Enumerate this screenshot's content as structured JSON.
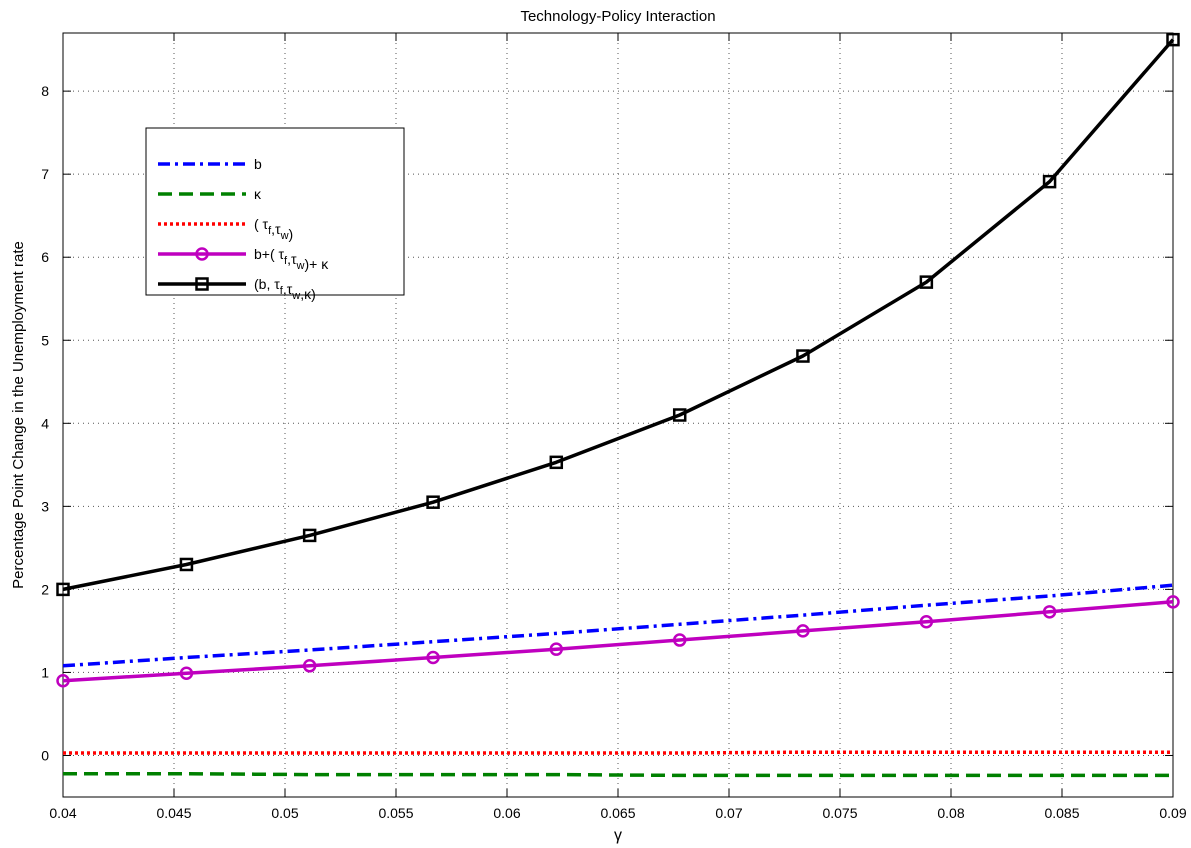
{
  "chart_data": {
    "type": "line",
    "title": "Technology-Policy Interaction",
    "xlabel": "γ",
    "ylabel": "Percentage Point Change in the Unemployment rate",
    "xlim": [
      0.04,
      0.09
    ],
    "ylim": [
      -0.5,
      8.7
    ],
    "xticks": [
      0.04,
      0.045,
      0.05,
      0.055,
      0.06,
      0.065,
      0.07,
      0.075,
      0.08,
      0.085,
      0.09
    ],
    "xtick_labels": [
      "0.04",
      "0.045",
      "0.05",
      "0.055",
      "0.06",
      "0.065",
      "0.07",
      "0.075",
      "0.08",
      "0.085",
      "0.09"
    ],
    "yticks": [
      0,
      1,
      2,
      3,
      4,
      5,
      6,
      7,
      8
    ],
    "ytick_labels": [
      "0",
      "1",
      "2",
      "3",
      "4",
      "5",
      "6",
      "7",
      "8"
    ],
    "grid": true,
    "legend_position": "upper-left",
    "x": [
      0.04,
      0.04556,
      0.05111,
      0.05667,
      0.06222,
      0.06778,
      0.07333,
      0.07889,
      0.08444,
      0.09
    ],
    "series": [
      {
        "name": "b",
        "legend_parts": [
          {
            "t": "b"
          }
        ],
        "color": "#0000ff",
        "dash": "12,5,3,5",
        "marker": "none",
        "values": [
          1.08,
          1.18,
          1.27,
          1.37,
          1.47,
          1.58,
          1.69,
          1.81,
          1.92,
          2.05
        ]
      },
      {
        "name": "κ",
        "legend_parts": [
          {
            "t": "κ"
          }
        ],
        "color": "#008000",
        "dash": "14,7",
        "marker": "none",
        "values": [
          -0.22,
          -0.22,
          -0.23,
          -0.23,
          -0.23,
          -0.24,
          -0.24,
          -0.24,
          -0.24,
          -0.24
        ]
      },
      {
        "name": "( τf,τw)",
        "legend_parts": [
          {
            "t": "( τ"
          },
          {
            "t": "f",
            "sub": true
          },
          {
            "t": ",τ"
          },
          {
            "t": "w",
            "sub": true
          },
          {
            "t": ")"
          }
        ],
        "color": "#ff0000",
        "dash": "3,3",
        "marker": "none",
        "values": [
          0.03,
          0.03,
          0.03,
          0.03,
          0.03,
          0.03,
          0.04,
          0.04,
          0.04,
          0.04
        ]
      },
      {
        "name": "b+( τf,τw)+ κ",
        "legend_parts": [
          {
            "t": "b+( τ"
          },
          {
            "t": "f",
            "sub": true
          },
          {
            "t": ",τ"
          },
          {
            "t": "w",
            "sub": true
          },
          {
            "t": ")+ κ"
          }
        ],
        "color": "#bf00bf",
        "dash": "",
        "marker": "circle",
        "values": [
          0.9,
          0.99,
          1.08,
          1.18,
          1.28,
          1.39,
          1.5,
          1.61,
          1.73,
          1.85
        ]
      },
      {
        "name": "(b, τf,τw,κ)",
        "legend_parts": [
          {
            "t": "(b, τ"
          },
          {
            "t": "f",
            "sub": true
          },
          {
            "t": ",τ"
          },
          {
            "t": "w",
            "sub": true
          },
          {
            "t": ",κ)"
          }
        ],
        "color": "#000000",
        "dash": "",
        "marker": "square",
        "values": [
          2.0,
          2.3,
          2.65,
          3.05,
          3.53,
          4.1,
          4.81,
          5.7,
          6.91,
          8.62
        ]
      }
    ]
  }
}
